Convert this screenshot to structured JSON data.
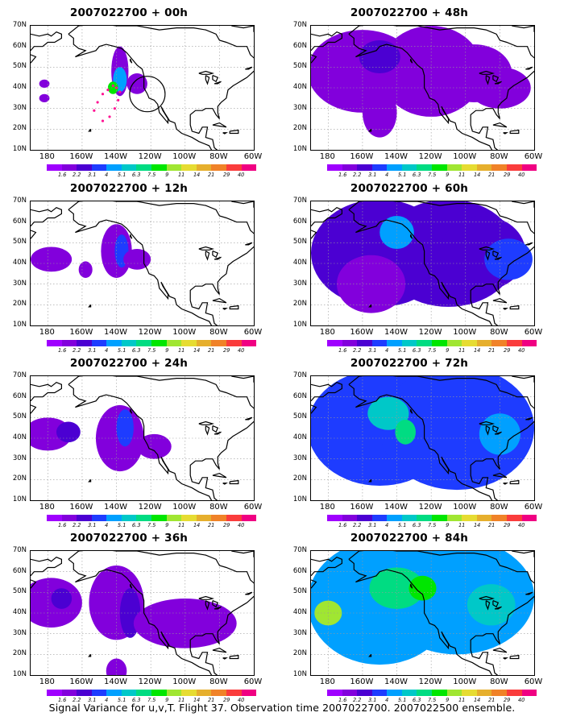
{
  "caption": "Signal Variance for u,v,T. Flight 37. Observation time 2007022700. 2007022500 ensemble.",
  "lat_labels": [
    "70N",
    "60N",
    "50N",
    "40N",
    "30N",
    "20N",
    "10N"
  ],
  "lon_labels": [
    "180",
    "160W",
    "140W",
    "120W",
    "100W",
    "80W",
    "60W"
  ],
  "colorbar": {
    "levels": [
      "1.6",
      "2.2",
      "3.1",
      "4",
      "5.1",
      "6.3",
      "7.5",
      "9",
      "11",
      "14",
      "21",
      "29",
      "40"
    ],
    "colors": [
      "#9f00ff",
      "#8200dc",
      "#4b00d2",
      "#1e3cff",
      "#00a0ff",
      "#00c8c8",
      "#00dc82",
      "#00e600",
      "#a0e632",
      "#e6dc32",
      "#e6af2d",
      "#f08228",
      "#fa3c3c",
      "#f00082"
    ]
  },
  "panels": [
    {
      "id": "00h",
      "title": "2007022700 + 00h",
      "level": 0
    },
    {
      "id": "12h",
      "title": "2007022700 + 12h",
      "level": 1
    },
    {
      "id": "24h",
      "title": "2007022700 + 24h",
      "level": 2
    },
    {
      "id": "36h",
      "title": "2007022700 + 36h",
      "level": 3
    },
    {
      "id": "48h",
      "title": "2007022700 + 48h",
      "level": 4
    },
    {
      "id": "60h",
      "title": "2007022700 + 60h",
      "level": 5
    },
    {
      "id": "72h",
      "title": "2007022700 + 72h",
      "level": 6
    },
    {
      "id": "84h",
      "title": "2007022700 + 84h",
      "level": 7
    }
  ]
}
